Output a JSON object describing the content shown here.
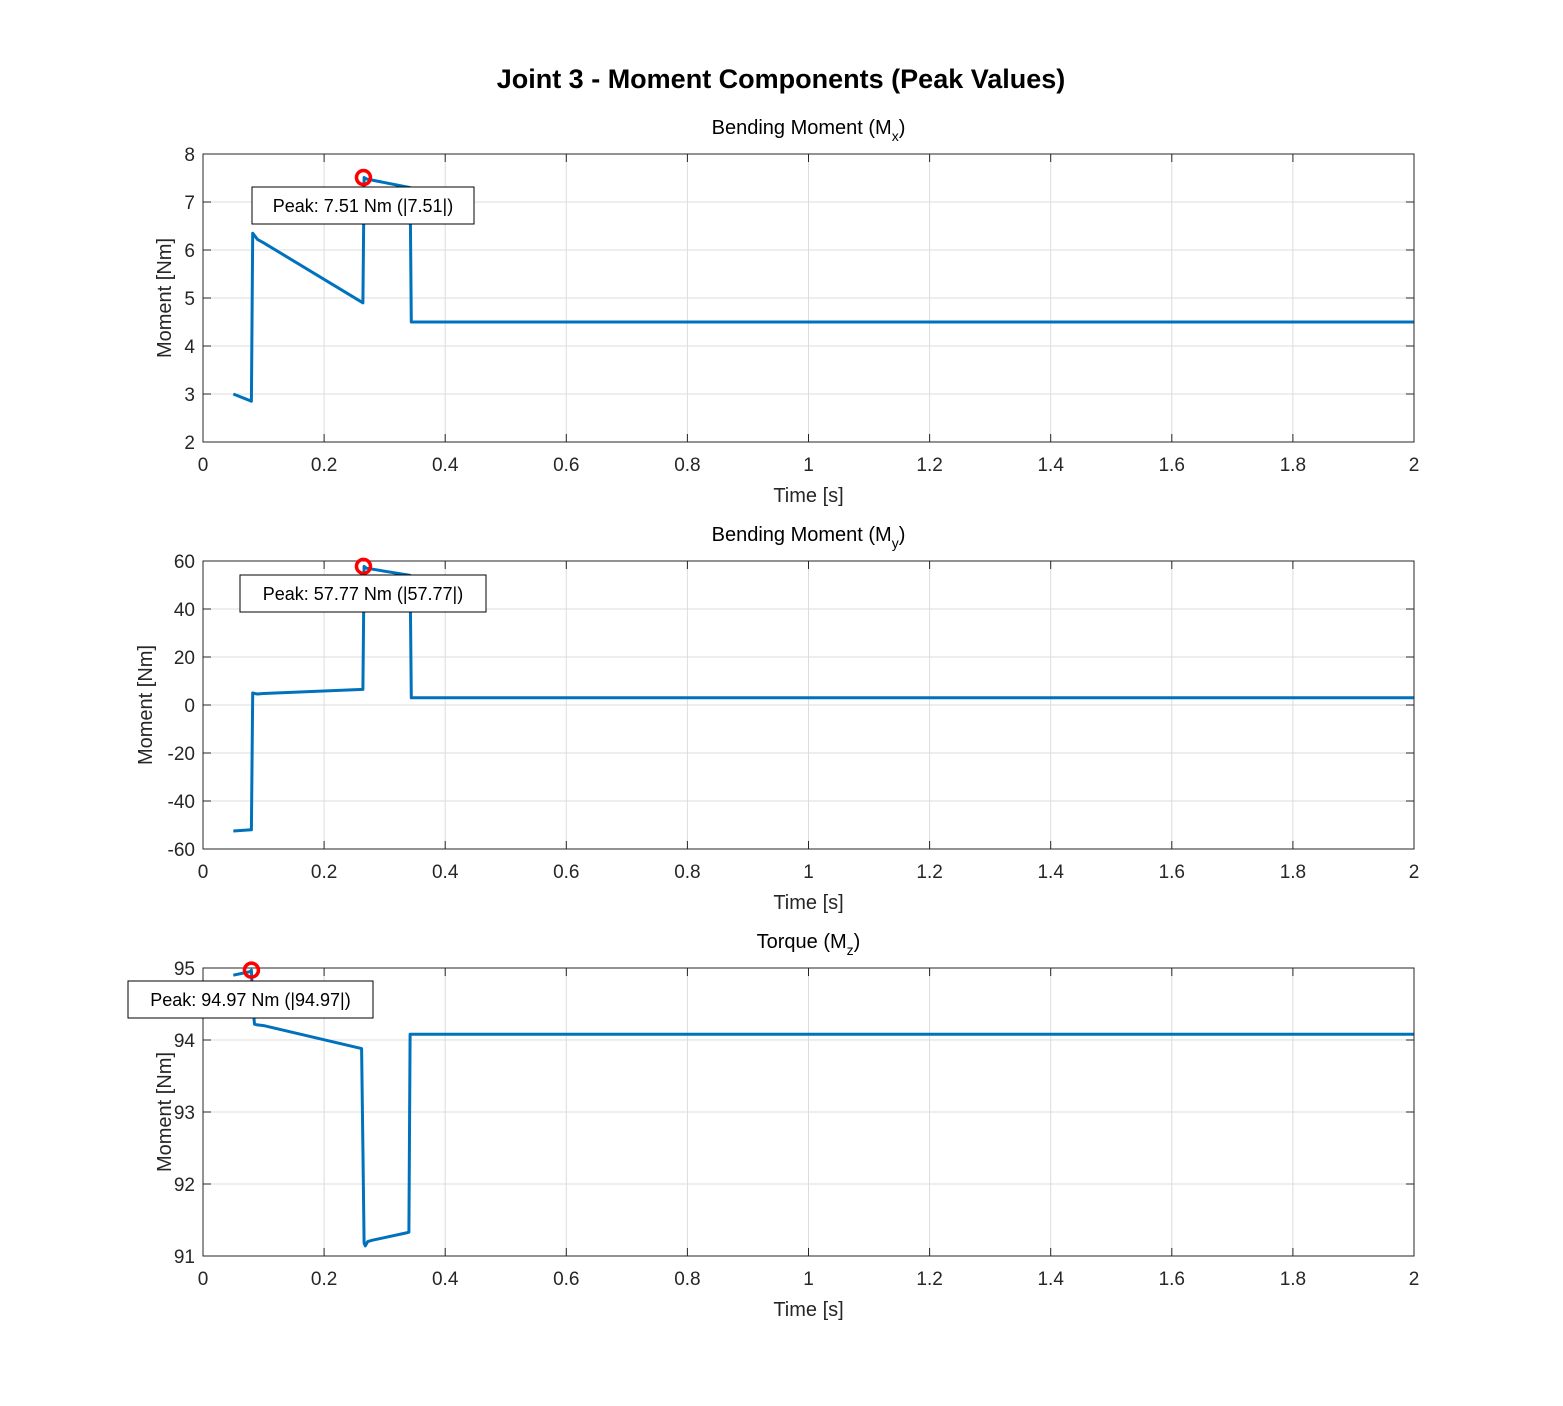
{
  "figure": {
    "title": "Joint 3 - Moment Components (Peak Values)"
  },
  "colors": {
    "series": "#0072BD",
    "peak_marker": "#FF0000",
    "grid": "#DCDCDC",
    "axes": "#262626"
  },
  "chart_data": [
    {
      "type": "line",
      "title": "Bending Moment (Mx)",
      "title_main": "Bending Moment (M",
      "title_sub": "x",
      "title_end": ")",
      "xlabel": "Time [s]",
      "ylabel": "Moment [Nm]",
      "xlim": [
        0,
        2
      ],
      "ylim": [
        2,
        8
      ],
      "xticks": [
        0,
        0.2,
        0.4,
        0.6,
        0.8,
        1,
        1.2,
        1.4,
        1.6,
        1.8,
        2
      ],
      "xtick_labels": [
        "0",
        "0.2",
        "0.4",
        "0.6",
        "0.8",
        "1",
        "1.2",
        "1.4",
        "1.6",
        "1.8",
        "2"
      ],
      "yticks": [
        2,
        3,
        4,
        5,
        6,
        7,
        8
      ],
      "ytick_labels": [
        "2",
        "3",
        "4",
        "5",
        "6",
        "7",
        "8"
      ],
      "grid": true,
      "series": [
        {
          "x": [
            0.05,
            0.08,
            0.082,
            0.085,
            0.09,
            0.1,
            0.264,
            0.266,
            0.27,
            0.342,
            0.344,
            2.0
          ],
          "y": [
            3.0,
            2.85,
            6.35,
            6.3,
            6.22,
            6.15,
            4.9,
            7.51,
            7.48,
            7.3,
            4.5,
            4.5
          ]
        }
      ],
      "peak": {
        "x": 0.265,
        "y": 7.51,
        "label": "Peak: 7.51 Nm (|7.51|)"
      }
    },
    {
      "type": "line",
      "title": "Bending Moment (My)",
      "title_main": "Bending Moment (M",
      "title_sub": "y",
      "title_end": ")",
      "xlabel": "Time [s]",
      "ylabel": "Moment [Nm]",
      "xlim": [
        0,
        2
      ],
      "ylim": [
        -60,
        60
      ],
      "xticks": [
        0,
        0.2,
        0.4,
        0.6,
        0.8,
        1,
        1.2,
        1.4,
        1.6,
        1.8,
        2
      ],
      "xtick_labels": [
        "0",
        "0.2",
        "0.4",
        "0.6",
        "0.8",
        "1",
        "1.2",
        "1.4",
        "1.6",
        "1.8",
        "2"
      ],
      "yticks": [
        -60,
        -40,
        -20,
        0,
        20,
        40,
        60
      ],
      "ytick_labels": [
        "-60",
        "-40",
        "-20",
        "0",
        "20",
        "40",
        "60"
      ],
      "grid": true,
      "series": [
        {
          "x": [
            0.05,
            0.08,
            0.082,
            0.085,
            0.09,
            0.1,
            0.264,
            0.266,
            0.27,
            0.342,
            0.344,
            2.0
          ],
          "y": [
            -52.5,
            -52,
            5,
            4.8,
            4.6,
            4.8,
            6.5,
            57.77,
            57.0,
            54.0,
            3,
            3
          ]
        }
      ],
      "peak": {
        "x": 0.265,
        "y": 57.77,
        "label": "Peak: 57.77 Nm (|57.77|)"
      }
    },
    {
      "type": "line",
      "title": "Torque (Mz)",
      "title_main": "Torque (M",
      "title_sub": "z",
      "title_end": ")",
      "xlabel": "Time [s]",
      "ylabel": "Moment [Nm]",
      "xlim": [
        0,
        2
      ],
      "ylim": [
        91,
        95
      ],
      "xticks": [
        0,
        0.2,
        0.4,
        0.6,
        0.8,
        1,
        1.2,
        1.4,
        1.6,
        1.8,
        2
      ],
      "xtick_labels": [
        "0",
        "0.2",
        "0.4",
        "0.6",
        "0.8",
        "1",
        "1.2",
        "1.4",
        "1.6",
        "1.8",
        "2"
      ],
      "yticks": [
        91,
        92,
        93,
        94,
        95
      ],
      "ytick_labels": [
        "91",
        "92",
        "93",
        "94",
        "95"
      ],
      "grid": true,
      "series": [
        {
          "x": [
            0.05,
            0.078,
            0.08,
            0.082,
            0.085,
            0.09,
            0.1,
            0.262,
            0.264,
            0.266,
            0.268,
            0.272,
            0.28,
            0.335,
            0.34,
            0.342,
            2.0
          ],
          "y": [
            94.9,
            94.95,
            94.97,
            94.5,
            94.22,
            94.21,
            94.2,
            93.88,
            92.5,
            91.18,
            91.14,
            91.2,
            91.22,
            91.32,
            91.33,
            94.08,
            94.08
          ]
        }
      ],
      "peak": {
        "x": 0.08,
        "y": 94.97,
        "label": "Peak: 94.97 Nm (|94.97|)"
      }
    }
  ]
}
